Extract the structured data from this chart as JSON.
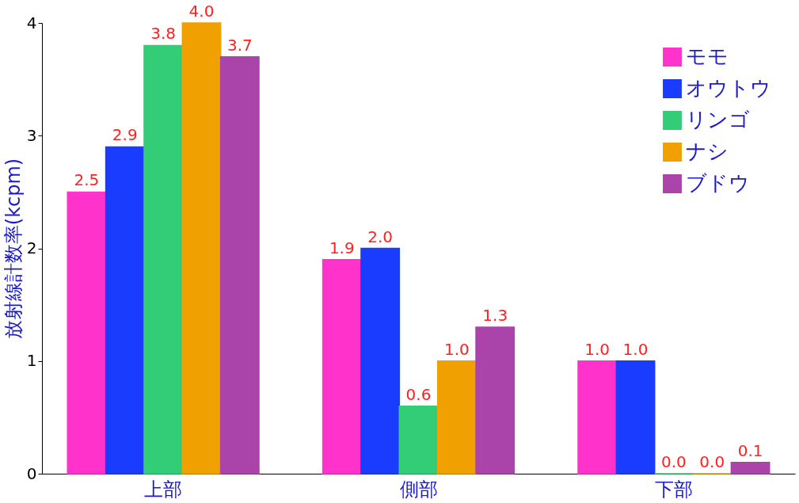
{
  "chart_data": {
    "type": "bar",
    "ylabel": "放射線計数率(kcpm)",
    "categories": [
      "上部",
      "側部",
      "下部"
    ],
    "series": [
      {
        "name": "モモ",
        "color": "#ff33cc",
        "values": [
          2.5,
          1.9,
          1.0
        ],
        "value_labels": [
          "2.5",
          "1.9",
          "1.0"
        ]
      },
      {
        "name": "オウトウ",
        "color": "#1a3cff",
        "values": [
          2.9,
          2.0,
          1.0
        ],
        "value_labels": [
          "2.9",
          "2.0",
          "1.0"
        ]
      },
      {
        "name": "リンゴ",
        "color": "#33cc77",
        "values": [
          3.8,
          0.6,
          0.0
        ],
        "value_labels": [
          "3.8",
          "0.6",
          "0.0"
        ]
      },
      {
        "name": "ナシ",
        "color": "#f0a000",
        "values": [
          4.0,
          1.0,
          0.0
        ],
        "value_labels": [
          "4.0",
          "1.0",
          "0.0"
        ]
      },
      {
        "name": "ブドウ",
        "color": "#aa44aa",
        "values": [
          3.7,
          1.3,
          0.1
        ],
        "value_labels": [
          "3.7",
          "1.3",
          "0.1"
        ]
      }
    ],
    "ylim": [
      0,
      4
    ],
    "yticks": [
      0,
      1,
      2,
      3,
      4
    ],
    "grid": false,
    "legend": "top right"
  }
}
